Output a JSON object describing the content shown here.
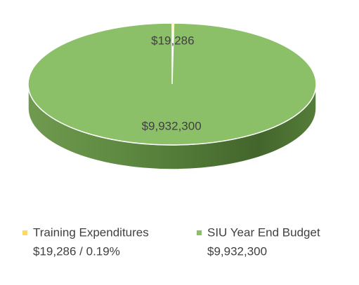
{
  "chart_data": {
    "type": "pie",
    "categories": [
      "Training Expenditures",
      "SIU Year End Budget"
    ],
    "values": [
      19286,
      9932300
    ],
    "value_labels": [
      "$19,286",
      "$9,932,300"
    ],
    "legend_details": [
      "$19,286 / 0.19%",
      "$9,932,300"
    ],
    "colors": [
      "#ffd966",
      "#8cc068"
    ]
  }
}
